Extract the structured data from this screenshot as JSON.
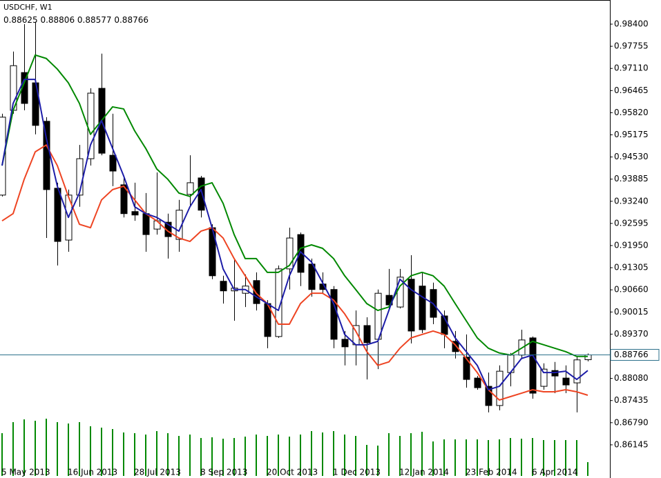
{
  "chart_data": {
    "type": "candlestick",
    "title": "USDCHF, W1",
    "categories": [
      "5 May 2013",
      null,
      null,
      null,
      null,
      null,
      "16 Jun 2013",
      null,
      null,
      null,
      null,
      null,
      "28 Jul 2013",
      null,
      null,
      null,
      null,
      null,
      "8 Sep 2013",
      null,
      null,
      null,
      null,
      null,
      "20 Oct 2013",
      null,
      null,
      null,
      null,
      null,
      "1 Dec 2013",
      null,
      null,
      null,
      null,
      null,
      "12 Jan 2014",
      null,
      null,
      null,
      null,
      null,
      "23 Feb 2014",
      null,
      null,
      null,
      null,
      null,
      "6 Apr 2014",
      null,
      null,
      null,
      null,
      null
    ],
    "ohlc": [
      [
        0.9342,
        0.9579,
        0.9338,
        0.9569
      ],
      [
        0.9589,
        0.976,
        0.9579,
        0.9719
      ],
      [
        0.9699,
        0.984,
        0.9589,
        0.9609
      ],
      [
        0.9669,
        0.9845,
        0.9519,
        0.9545
      ],
      [
        0.9557,
        0.9569,
        0.9217,
        0.9358
      ],
      [
        0.9362,
        0.9378,
        0.9137,
        0.9207
      ],
      [
        0.9211,
        0.9358,
        0.9177,
        0.9342
      ],
      [
        0.9342,
        0.9488,
        0.9308,
        0.9448
      ],
      [
        0.9448,
        0.9653,
        0.9428,
        0.9639
      ],
      [
        0.9653,
        0.9754,
        0.9458,
        0.9464
      ],
      [
        0.9458,
        0.9579,
        0.9368,
        0.9412
      ],
      [
        0.9372,
        0.9398,
        0.9277,
        0.9288
      ],
      [
        0.9294,
        0.9378,
        0.9267,
        0.9284
      ],
      [
        0.9288,
        0.9348,
        0.9177,
        0.9227
      ],
      [
        0.9243,
        0.9408,
        0.9227,
        0.9267
      ],
      [
        0.9263,
        0.9288,
        0.9157,
        0.9221
      ],
      [
        0.9213,
        0.9328,
        0.9177,
        0.9298
      ],
      [
        0.9344,
        0.9458,
        0.9308,
        0.9378
      ],
      [
        0.9392,
        0.9398,
        0.9277,
        0.9298
      ],
      [
        0.9247,
        0.9257,
        0.9097,
        0.9107
      ],
      [
        0.9091,
        0.9107,
        0.9026,
        0.9063
      ],
      [
        0.9063,
        0.9157,
        0.8976,
        0.9071
      ],
      [
        0.9056,
        0.9111,
        0.9016,
        0.9077
      ],
      [
        0.9093,
        0.9117,
        0.9006,
        0.9026
      ],
      [
        0.9026,
        0.9036,
        0.8896,
        0.893
      ],
      [
        0.893,
        0.9137,
        0.8926,
        0.9127
      ],
      [
        0.9127,
        0.9247,
        0.9067,
        0.9217
      ],
      [
        0.9227,
        0.9233,
        0.9077,
        0.9117
      ],
      [
        0.9141,
        0.9157,
        0.9046,
        0.9067
      ],
      [
        0.9083,
        0.9117,
        0.9056,
        0.9067
      ],
      [
        0.9067,
        0.9077,
        0.8896,
        0.8922
      ],
      [
        0.8922,
        0.8946,
        0.8846,
        0.89
      ],
      [
        0.8906,
        0.9006,
        0.8846,
        0.8962
      ],
      [
        0.8962,
        0.8986,
        0.8805,
        0.8912
      ],
      [
        0.8922,
        0.9067,
        0.8835,
        0.9056
      ],
      [
        0.905,
        0.9127,
        0.9012,
        0.9022
      ],
      [
        0.9016,
        0.9127,
        0.9012,
        0.9103
      ],
      [
        0.9097,
        0.9167,
        0.891,
        0.8946
      ],
      [
        0.9077,
        0.9117,
        0.894,
        0.895
      ],
      [
        0.9067,
        0.9087,
        0.8966,
        0.8986
      ],
      [
        0.899,
        0.9006,
        0.8896,
        0.8936
      ],
      [
        0.8916,
        0.8946,
        0.8866,
        0.8886
      ],
      [
        0.887,
        0.8936,
        0.8781,
        0.8805
      ],
      [
        0.8809,
        0.8815,
        0.8775,
        0.8781
      ],
      [
        0.8785,
        0.8825,
        0.8709,
        0.8729
      ],
      [
        0.8729,
        0.8846,
        0.8715,
        0.8829
      ],
      [
        0.8825,
        0.8882,
        0.8785,
        0.8876
      ],
      [
        0.8876,
        0.895,
        0.8866,
        0.892
      ],
      [
        0.8926,
        0.893,
        0.8749,
        0.8765
      ],
      [
        0.8785,
        0.8852,
        0.8775,
        0.8835
      ],
      [
        0.8831,
        0.8856,
        0.8765,
        0.8815
      ],
      [
        0.8809,
        0.8846,
        0.8765,
        0.8789
      ],
      [
        0.8795,
        0.8872,
        0.8709,
        0.8862
      ],
      [
        0.88625,
        0.88806,
        0.88577,
        0.88766
      ]
    ],
    "lines": [
      {
        "color": "#ee4422",
        "values": [
          0.9267,
          0.9288,
          0.9388,
          0.9468,
          0.9488,
          0.9428,
          0.9338,
          0.9257,
          0.9247,
          0.9328,
          0.9358,
          0.9368,
          0.9328,
          0.9288,
          0.9267,
          0.9237,
          0.9217,
          0.9207,
          0.9237,
          0.9247,
          0.9217,
          0.9157,
          0.9107,
          0.9056,
          0.9026,
          0.8966,
          0.8966,
          0.9026,
          0.9056,
          0.9056,
          0.9036,
          0.8996,
          0.8946,
          0.8886,
          0.8846,
          0.8856,
          0.8896,
          0.8926,
          0.8936,
          0.8946,
          0.8936,
          0.8906,
          0.8866,
          0.8825,
          0.8775,
          0.8745,
          0.8755,
          0.8765,
          0.8775,
          0.8769,
          0.8769,
          0.8775,
          0.8769,
          0.8759
        ]
      },
      {
        "color": "#008800",
        "values": [
          0.9428,
          0.9589,
          0.9669,
          0.975,
          0.974,
          0.9709,
          0.9669,
          0.9609,
          0.9519,
          0.9559,
          0.9599,
          0.9593,
          0.9529,
          0.9478,
          0.9418,
          0.9388,
          0.9348,
          0.9338,
          0.9368,
          0.9378,
          0.9318,
          0.9227,
          0.9157,
          0.9157,
          0.9117,
          0.9117,
          0.9137,
          0.9187,
          0.9197,
          0.9187,
          0.9157,
          0.9107,
          0.9067,
          0.9026,
          0.9006,
          0.9016,
          0.9077,
          0.9107,
          0.9117,
          0.9107,
          0.9077,
          0.9026,
          0.8976,
          0.8926,
          0.8896,
          0.8882,
          0.8876,
          0.8896,
          0.8916,
          0.8906,
          0.8896,
          0.8886,
          0.8872,
          0.8872
        ]
      },
      {
        "color": "#1c1ca8",
        "values": [
          0.9428,
          0.9609,
          0.9679,
          0.9679,
          0.9508,
          0.9368,
          0.9277,
          0.9348,
          0.9488,
          0.9559,
          0.9478,
          0.9398,
          0.9308,
          0.9288,
          0.9277,
          0.9257,
          0.9237,
          0.9308,
          0.9358,
          0.9247,
          0.9127,
          0.9067,
          0.9067,
          0.9046,
          0.9026,
          0.9006,
          0.9107,
          0.9177,
          0.9147,
          0.9087,
          0.9026,
          0.8936,
          0.8906,
          0.8906,
          0.8916,
          0.9006,
          0.9097,
          0.9067,
          0.9046,
          0.9026,
          0.8986,
          0.8926,
          0.8886,
          0.8846,
          0.8775,
          0.8785,
          0.8825,
          0.8866,
          0.8876,
          0.8825,
          0.8825,
          0.8829,
          0.8805,
          0.8831
        ]
      }
    ],
    "volume": {
      "color": "#008800",
      "values": [
        62,
        78,
        82,
        80,
        83,
        78,
        76,
        78,
        72,
        70,
        68,
        63,
        62,
        60,
        65,
        62,
        58,
        60,
        55,
        56,
        54,
        55,
        57,
        60,
        58,
        60,
        57,
        60,
        65,
        63,
        65,
        60,
        58,
        45,
        44,
        62,
        58,
        62,
        64,
        50,
        53,
        53,
        53,
        53,
        52,
        53,
        55,
        54,
        55,
        52,
        52,
        52,
        52,
        20
      ]
    },
    "ylim": [
      0.85179,
      0.99103
    ],
    "yticks": [
      {
        "value": 0.984,
        "label": "0.98400"
      },
      0.97755,
      {
        "value": 0.9711,
        "label": "0.97110"
      },
      0.96465,
      {
        "value": 0.9582,
        "label": "0.95820"
      },
      0.95175,
      {
        "value": 0.9453,
        "label": "0.94530"
      },
      0.93885,
      {
        "value": 0.9324,
        "label": "0.93240"
      },
      0.92595,
      {
        "value": 0.9195,
        "label": "0.91950"
      },
      0.91305,
      {
        "value": 0.9066,
        "label": "0.90660"
      },
      0.90015,
      {
        "value": 0.8937,
        "label": "0.89370"
      },
      {
        "value": 0.8808,
        "label": "0.88080"
      },
      0.87435,
      {
        "value": 0.8679,
        "label": "0.86790"
      },
      0.86145
    ],
    "price_line_color": "#2a6f8a",
    "grid": false
  }
}
